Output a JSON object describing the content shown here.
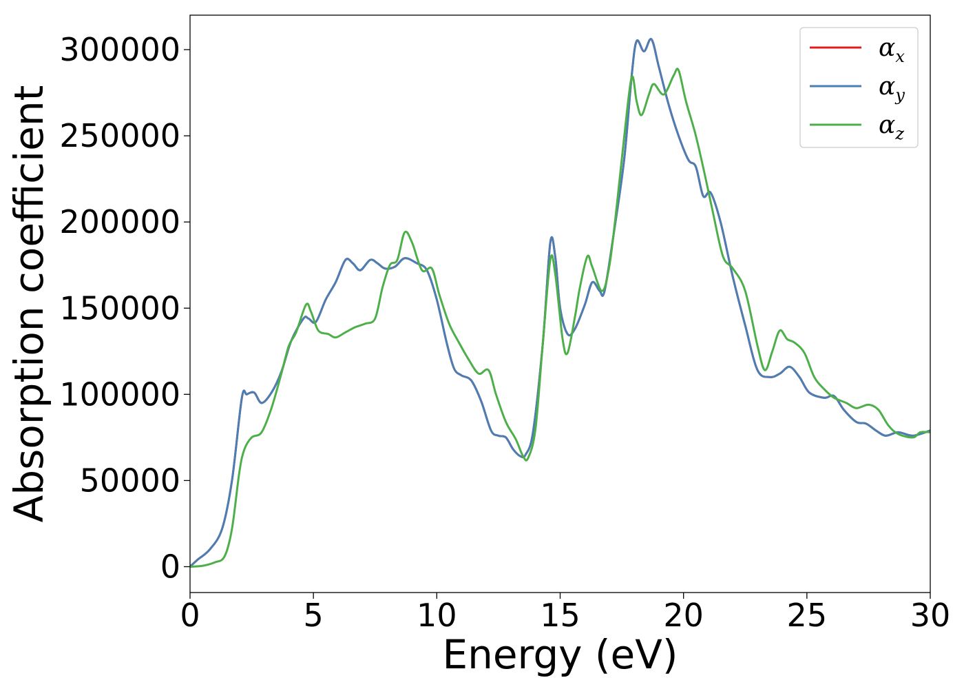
{
  "chart_data": {
    "type": "line",
    "title": "",
    "xlabel": "Energy (eV)",
    "ylabel": "Absorption coefficient",
    "xlim": [
      0,
      30
    ],
    "ylim": [
      -15000,
      320000
    ],
    "xticks": [
      0,
      5,
      10,
      15,
      20,
      25,
      30
    ],
    "xtick_labels": [
      "0",
      "5",
      "10",
      "15",
      "20",
      "25",
      "30"
    ],
    "yticks": [
      0,
      50000,
      100000,
      150000,
      200000,
      250000,
      300000
    ],
    "ytick_labels": [
      "0",
      "50000",
      "100000",
      "150000",
      "200000",
      "250000",
      "300000"
    ],
    "grid": false,
    "legend_position": "top-right",
    "series": [
      {
        "name": "α_x",
        "legend_base": "α",
        "legend_sub": "x",
        "color": "#e41a1c",
        "points": [
          [
            0,
            0
          ],
          [
            0.3,
            4000
          ],
          [
            0.8,
            10000
          ],
          [
            1.3,
            22000
          ],
          [
            1.7,
            50000
          ],
          [
            2.1,
            98000
          ],
          [
            2.3,
            100000
          ],
          [
            2.6,
            101000
          ],
          [
            2.9,
            95000
          ],
          [
            3.3,
            101000
          ],
          [
            3.7,
            113000
          ],
          [
            4.1,
            131000
          ],
          [
            4.6,
            144000
          ],
          [
            4.8,
            144000
          ],
          [
            5.1,
            142000
          ],
          [
            5.5,
            155000
          ],
          [
            5.9,
            165000
          ],
          [
            6.3,
            178000
          ],
          [
            6.6,
            176000
          ],
          [
            6.9,
            172000
          ],
          [
            7.3,
            178000
          ],
          [
            7.6,
            176000
          ],
          [
            7.9,
            173000
          ],
          [
            8.3,
            174000
          ],
          [
            8.7,
            179000
          ],
          [
            9.2,
            176000
          ],
          [
            9.6,
            172000
          ],
          [
            10.0,
            155000
          ],
          [
            10.4,
            130000
          ],
          [
            10.7,
            115000
          ],
          [
            11.0,
            111000
          ],
          [
            11.4,
            108000
          ],
          [
            11.8,
            96000
          ],
          [
            12.2,
            79000
          ],
          [
            12.5,
            76000
          ],
          [
            12.8,
            75000
          ],
          [
            13.1,
            68000
          ],
          [
            13.4,
            64000
          ],
          [
            13.6,
            65000
          ],
          [
            13.9,
            78000
          ],
          [
            14.3,
            130000
          ],
          [
            14.6,
            188000
          ],
          [
            14.8,
            180000
          ],
          [
            15.0,
            150000
          ],
          [
            15.3,
            135000
          ],
          [
            15.6,
            138000
          ],
          [
            16.0,
            152000
          ],
          [
            16.3,
            165000
          ],
          [
            16.6,
            160000
          ],
          [
            16.8,
            160000
          ],
          [
            17.2,
            196000
          ],
          [
            17.6,
            237000
          ],
          [
            17.9,
            285000
          ],
          [
            18.1,
            305000
          ],
          [
            18.4,
            299000
          ],
          [
            18.7,
            306000
          ],
          [
            19.0,
            290000
          ],
          [
            19.4,
            268000
          ],
          [
            19.8,
            250000
          ],
          [
            20.2,
            236000
          ],
          [
            20.5,
            232000
          ],
          [
            20.8,
            215000
          ],
          [
            21.1,
            217000
          ],
          [
            21.5,
            200000
          ],
          [
            22.0,
            168000
          ],
          [
            22.5,
            140000
          ],
          [
            23.0,
            114000
          ],
          [
            23.5,
            110000
          ],
          [
            23.9,
            112000
          ],
          [
            24.3,
            116000
          ],
          [
            24.7,
            110000
          ],
          [
            25.1,
            101000
          ],
          [
            25.7,
            98000
          ],
          [
            26.1,
            99000
          ],
          [
            26.5,
            91000
          ],
          [
            27.0,
            84000
          ],
          [
            27.4,
            83000
          ],
          [
            27.8,
            79000
          ],
          [
            28.2,
            76000
          ],
          [
            28.7,
            78000
          ],
          [
            29.3,
            76000
          ],
          [
            30,
            79000
          ]
        ]
      },
      {
        "name": "α_y",
        "legend_base": "α",
        "legend_sub": "y",
        "color": "#4a7fb5",
        "points": [
          [
            0,
            0
          ],
          [
            0.3,
            4000
          ],
          [
            0.8,
            10000
          ],
          [
            1.3,
            22000
          ],
          [
            1.7,
            50000
          ],
          [
            2.1,
            98000
          ],
          [
            2.3,
            100000
          ],
          [
            2.6,
            101000
          ],
          [
            2.9,
            95000
          ],
          [
            3.3,
            101000
          ],
          [
            3.7,
            113000
          ],
          [
            4.1,
            131000
          ],
          [
            4.6,
            144000
          ],
          [
            4.8,
            144000
          ],
          [
            5.1,
            142000
          ],
          [
            5.5,
            155000
          ],
          [
            5.9,
            165000
          ],
          [
            6.3,
            178000
          ],
          [
            6.6,
            176000
          ],
          [
            6.9,
            172000
          ],
          [
            7.3,
            178000
          ],
          [
            7.6,
            176000
          ],
          [
            7.9,
            173000
          ],
          [
            8.3,
            174000
          ],
          [
            8.7,
            179000
          ],
          [
            9.2,
            176000
          ],
          [
            9.6,
            172000
          ],
          [
            10.0,
            155000
          ],
          [
            10.4,
            130000
          ],
          [
            10.7,
            115000
          ],
          [
            11.0,
            111000
          ],
          [
            11.4,
            108000
          ],
          [
            11.8,
            96000
          ],
          [
            12.2,
            79000
          ],
          [
            12.5,
            76000
          ],
          [
            12.8,
            75000
          ],
          [
            13.1,
            68000
          ],
          [
            13.4,
            64000
          ],
          [
            13.6,
            65000
          ],
          [
            13.9,
            78000
          ],
          [
            14.3,
            130000
          ],
          [
            14.6,
            188000
          ],
          [
            14.8,
            180000
          ],
          [
            15.0,
            150000
          ],
          [
            15.3,
            135000
          ],
          [
            15.6,
            138000
          ],
          [
            16.0,
            152000
          ],
          [
            16.3,
            165000
          ],
          [
            16.6,
            160000
          ],
          [
            16.8,
            160000
          ],
          [
            17.2,
            196000
          ],
          [
            17.6,
            237000
          ],
          [
            17.9,
            285000
          ],
          [
            18.1,
            305000
          ],
          [
            18.4,
            299000
          ],
          [
            18.7,
            306000
          ],
          [
            19.0,
            290000
          ],
          [
            19.4,
            268000
          ],
          [
            19.8,
            250000
          ],
          [
            20.2,
            236000
          ],
          [
            20.5,
            232000
          ],
          [
            20.8,
            215000
          ],
          [
            21.1,
            217000
          ],
          [
            21.5,
            200000
          ],
          [
            22.0,
            168000
          ],
          [
            22.5,
            140000
          ],
          [
            23.0,
            114000
          ],
          [
            23.5,
            110000
          ],
          [
            23.9,
            112000
          ],
          [
            24.3,
            116000
          ],
          [
            24.7,
            110000
          ],
          [
            25.1,
            101000
          ],
          [
            25.7,
            98000
          ],
          [
            26.1,
            99000
          ],
          [
            26.5,
            91000
          ],
          [
            27.0,
            84000
          ],
          [
            27.4,
            83000
          ],
          [
            27.8,
            79000
          ],
          [
            28.2,
            76000
          ],
          [
            28.7,
            78000
          ],
          [
            29.3,
            76000
          ],
          [
            30,
            79000
          ]
        ]
      },
      {
        "name": "α_z",
        "legend_base": "α",
        "legend_sub": "z",
        "color": "#4daf4a",
        "points": [
          [
            0,
            0
          ],
          [
            0.5,
            500
          ],
          [
            1.0,
            2500
          ],
          [
            1.4,
            6000
          ],
          [
            1.7,
            22000
          ],
          [
            2.0,
            55000
          ],
          [
            2.2,
            68000
          ],
          [
            2.5,
            75000
          ],
          [
            2.9,
            78000
          ],
          [
            3.3,
            92000
          ],
          [
            3.7,
            112000
          ],
          [
            4.0,
            128000
          ],
          [
            4.3,
            136000
          ],
          [
            4.7,
            152000
          ],
          [
            4.9,
            148000
          ],
          [
            5.2,
            137000
          ],
          [
            5.6,
            135000
          ],
          [
            5.9,
            133000
          ],
          [
            6.3,
            136000
          ],
          [
            6.7,
            139000
          ],
          [
            7.1,
            141000
          ],
          [
            7.5,
            144000
          ],
          [
            7.8,
            162000
          ],
          [
            8.1,
            175000
          ],
          [
            8.4,
            178000
          ],
          [
            8.7,
            194000
          ],
          [
            9.0,
            188000
          ],
          [
            9.4,
            172000
          ],
          [
            9.8,
            173000
          ],
          [
            10.1,
            158000
          ],
          [
            10.5,
            141000
          ],
          [
            10.9,
            130000
          ],
          [
            11.3,
            120000
          ],
          [
            11.7,
            112000
          ],
          [
            12.1,
            114000
          ],
          [
            12.4,
            100000
          ],
          [
            12.8,
            84000
          ],
          [
            13.2,
            74000
          ],
          [
            13.5,
            64000
          ],
          [
            13.7,
            63000
          ],
          [
            14.0,
            80000
          ],
          [
            14.3,
            130000
          ],
          [
            14.6,
            178000
          ],
          [
            14.8,
            170000
          ],
          [
            15.1,
            132000
          ],
          [
            15.3,
            124000
          ],
          [
            15.6,
            145000
          ],
          [
            15.8,
            162000
          ],
          [
            16.1,
            180000
          ],
          [
            16.3,
            174000
          ],
          [
            16.7,
            160000
          ],
          [
            17.0,
            175000
          ],
          [
            17.3,
            210000
          ],
          [
            17.6,
            250000
          ],
          [
            17.9,
            284000
          ],
          [
            18.1,
            270000
          ],
          [
            18.3,
            262000
          ],
          [
            18.6,
            274000
          ],
          [
            18.8,
            280000
          ],
          [
            19.2,
            274000
          ],
          [
            19.6,
            285000
          ],
          [
            19.8,
            288000
          ],
          [
            20.1,
            270000
          ],
          [
            20.5,
            250000
          ],
          [
            20.9,
            225000
          ],
          [
            21.2,
            205000
          ],
          [
            21.6,
            180000
          ],
          [
            22.0,
            173000
          ],
          [
            22.5,
            160000
          ],
          [
            23.0,
            128000
          ],
          [
            23.3,
            114000
          ],
          [
            23.6,
            125000
          ],
          [
            23.9,
            137000
          ],
          [
            24.2,
            132000
          ],
          [
            24.5,
            130000
          ],
          [
            24.9,
            124000
          ],
          [
            25.3,
            110000
          ],
          [
            25.7,
            103000
          ],
          [
            26.1,
            98000
          ],
          [
            26.6,
            95000
          ],
          [
            27.0,
            92000
          ],
          [
            27.5,
            94000
          ],
          [
            27.9,
            91000
          ],
          [
            28.3,
            82000
          ],
          [
            28.7,
            77000
          ],
          [
            29.3,
            75000
          ],
          [
            29.6,
            78000
          ],
          [
            30,
            78000
          ]
        ]
      }
    ]
  }
}
